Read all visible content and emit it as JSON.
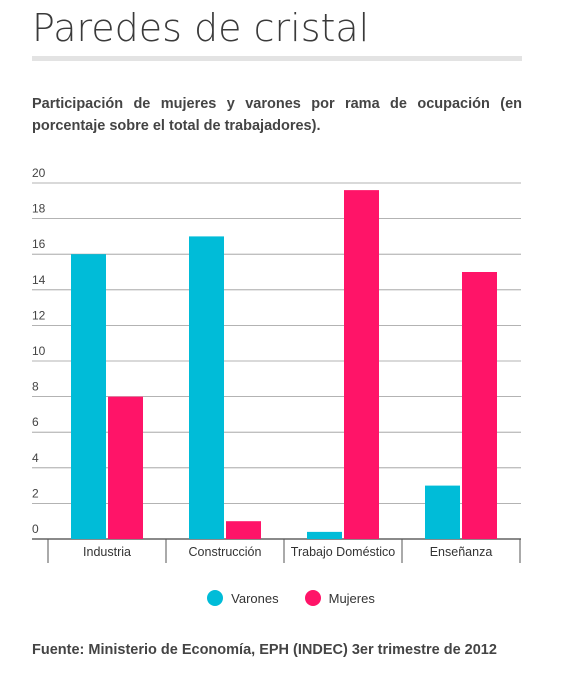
{
  "title": "Paredes de cristal",
  "subtitle": "Participación de mujeres y varones por rama de ocupación (en porcentaje sobre el total de trabajadores).",
  "source": "Fuente: Ministerio de Economía, EPH (INDEC) 3er trimestre de 2012",
  "chart_data": {
    "type": "bar",
    "title": "",
    "xlabel": "",
    "ylabel": "",
    "categories": [
      "Industria",
      "Construcción",
      "Trabajo Doméstico",
      "Enseñanza"
    ],
    "series": [
      {
        "name": "Varones",
        "color": "#00bcd8",
        "values": [
          16,
          17,
          0.4,
          3
        ]
      },
      {
        "name": "Mujeres",
        "color": "#ff1468",
        "values": [
          8,
          1,
          19.6,
          15
        ]
      }
    ],
    "ylim": [
      0,
      20
    ],
    "yticks": [
      "0",
      "2",
      "4",
      "6",
      "8",
      "10",
      "12",
      "14",
      "16",
      "18",
      "20"
    ],
    "grid": true,
    "legend_position": "bottom"
  }
}
